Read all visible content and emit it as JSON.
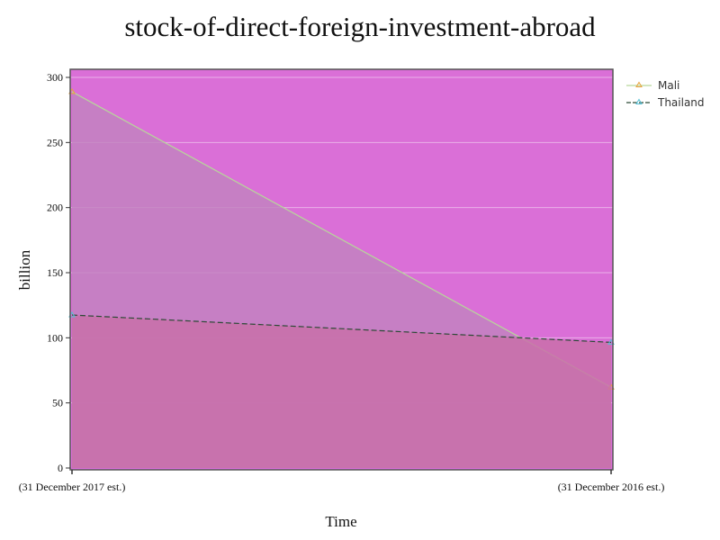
{
  "chart_data": {
    "type": "area",
    "title": "stock-of-direct-foreign-investment-abroad",
    "xlabel": "Time",
    "ylabel": "billion",
    "categories": [
      "(31 December 2017 est.)",
      "(31 December 2016 est.)"
    ],
    "ylim": [
      0,
      305
    ],
    "yticks": [
      0,
      50,
      100,
      150,
      200,
      250,
      300
    ],
    "grid": true,
    "legend_position": "right",
    "background_color": "#da6fd7",
    "series": [
      {
        "name": "Mali",
        "values": [
          289,
          62
        ],
        "line_color": "#b7d79a",
        "fill_color": "#c182c0",
        "marker_color": "#e8a33c",
        "line_style": "solid"
      },
      {
        "name": "Thailand",
        "values": [
          117.5,
          96.5
        ],
        "line_color": "#2c4a36",
        "fill_color": "#c86fa8",
        "marker_color": "#55c0d6",
        "line_style": "dashed"
      }
    ]
  }
}
